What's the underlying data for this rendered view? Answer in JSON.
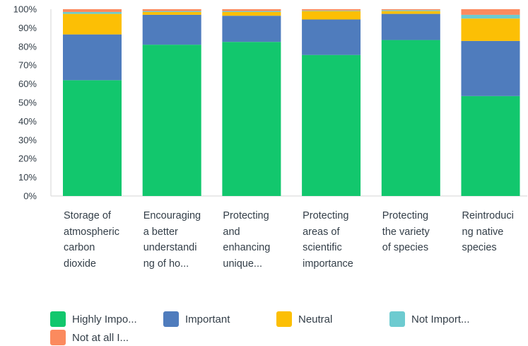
{
  "chart_data": {
    "type": "bar",
    "stacked": true,
    "normalized": true,
    "categories": [
      "Storage of atmospheric carbon dioxide",
      "Encouraging a better understanding of ho...",
      "Protecting and enhancing unique...",
      "Protecting areas of scientific importance",
      "Protecting the variety of species",
      "Reintroducing native species"
    ],
    "series": [
      {
        "name": "Highly Impo...",
        "color": "#12c76d",
        "values": [
          62,
          81,
          82.5,
          75.5,
          83.5,
          53.5
        ]
      },
      {
        "name": "Important",
        "color": "#4f7cbd",
        "values": [
          24.5,
          16,
          14,
          19,
          14,
          29.5
        ]
      },
      {
        "name": "Neutral",
        "color": "#fcbf05",
        "values": [
          11,
          1.5,
          2,
          4.5,
          1.5,
          12
        ]
      },
      {
        "name": "Not Import...",
        "color": "#6dcbd0",
        "values": [
          1,
          0.5,
          0.5,
          0.3,
          0.5,
          2
        ]
      },
      {
        "name": "Not at all I...",
        "color": "#fb8a5e",
        "values": [
          1.5,
          1,
          1,
          0.7,
          0.5,
          3
        ]
      }
    ],
    "ylim": [
      0,
      100
    ],
    "yticks": [
      "0%",
      "10%",
      "20%",
      "30%",
      "40%",
      "50%",
      "60%",
      "70%",
      "80%",
      "90%",
      "100%"
    ],
    "grid": false,
    "legend": "bottom"
  }
}
